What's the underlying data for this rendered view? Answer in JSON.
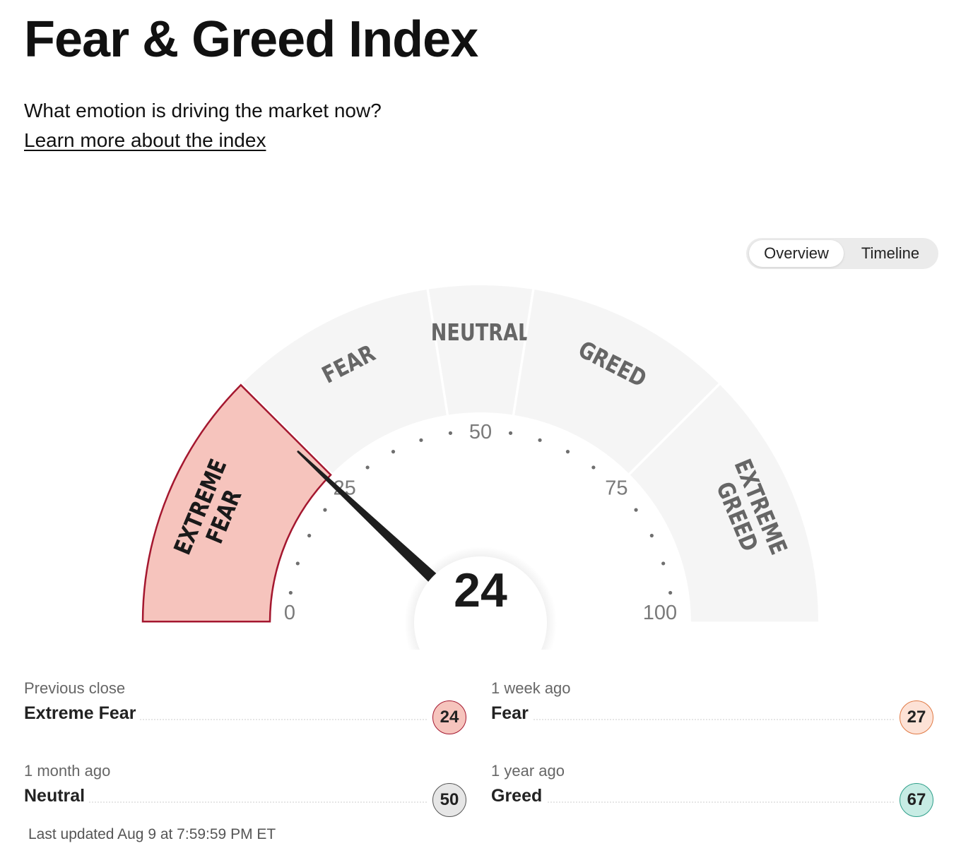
{
  "page": {
    "title": "Fear & Greed Index",
    "subtitle": "What emotion is driving the market now?",
    "learn_more": "Learn more about the index"
  },
  "view_toggle": {
    "options": [
      "Overview",
      "Timeline"
    ],
    "selected": "Overview"
  },
  "gauge": {
    "value": 24,
    "min": 0,
    "max": 100,
    "scale_labels": [
      "0",
      "25",
      "50",
      "75",
      "100"
    ],
    "segments": [
      {
        "lines": [
          "EXTREME",
          "FEAR"
        ],
        "from": 0,
        "to": 25,
        "active": true
      },
      {
        "lines": [
          "FEAR"
        ],
        "from": 25,
        "to": 45,
        "active": false
      },
      {
        "lines": [
          "NEUTRAL"
        ],
        "from": 45,
        "to": 55,
        "active": false
      },
      {
        "lines": [
          "GREED"
        ],
        "from": 55,
        "to": 75,
        "active": false
      },
      {
        "lines": [
          "EXTREME",
          "GREED"
        ],
        "from": 75,
        "to": 100,
        "active": false
      }
    ],
    "colors": {
      "active_fill": "#f6c4bd",
      "active_stroke": "#a4172f",
      "inactive_fill": "#f5f5f5",
      "label": "#666666",
      "active_label": "#1a1a1a",
      "needle": "#1e1e1e"
    }
  },
  "history": [
    {
      "id": "prev",
      "label": "Previous close",
      "rating": "Extreme Fear",
      "value": "24",
      "bg": "#f6c4bd",
      "border": "#a4172f"
    },
    {
      "id": "week",
      "label": "1 week ago",
      "rating": "Fear",
      "value": "27",
      "bg": "#fde2d6",
      "border": "#e07a45"
    },
    {
      "id": "month",
      "label": "1 month ago",
      "rating": "Neutral",
      "value": "50",
      "bg": "#e6e6e6",
      "border": "#555555"
    },
    {
      "id": "year",
      "label": "1 year ago",
      "rating": "Greed",
      "value": "67",
      "bg": "#c7ece4",
      "border": "#2f9f8a"
    }
  ],
  "last_updated": "Last updated Aug 9 at 7:59:59 PM ET"
}
